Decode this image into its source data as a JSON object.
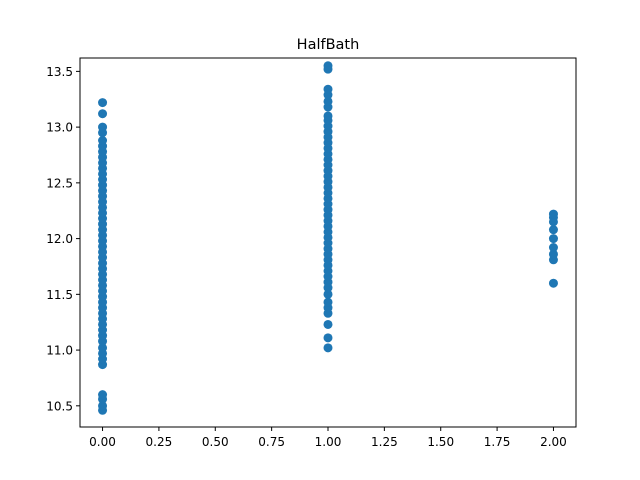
{
  "chart_data": {
    "type": "scatter",
    "title": "HalfBath",
    "xlabel": "",
    "ylabel": "",
    "xlim": [
      -0.1,
      2.1
    ],
    "ylim": [
      10.31,
      13.62
    ],
    "x_ticks": [
      0.0,
      0.25,
      0.5,
      0.75,
      1.0,
      1.25,
      1.5,
      1.75,
      2.0
    ],
    "x_tick_labels": [
      "0.00",
      "0.25",
      "0.50",
      "0.75",
      "1.00",
      "1.25",
      "1.50",
      "1.75",
      "2.00"
    ],
    "y_ticks": [
      10.5,
      11.0,
      11.5,
      12.0,
      12.5,
      13.0,
      13.5
    ],
    "y_tick_labels": [
      "10.5",
      "11.0",
      "11.5",
      "12.0",
      "12.5",
      "13.0",
      "13.5"
    ],
    "grid": false,
    "marker_color": "#1f77b4",
    "points": [
      {
        "x": 0,
        "y": 10.46
      },
      {
        "x": 0,
        "y": 10.5
      },
      {
        "x": 0,
        "y": 10.56
      },
      {
        "x": 0,
        "y": 10.6
      },
      {
        "x": 0,
        "y": 10.87
      },
      {
        "x": 0,
        "y": 10.92
      },
      {
        "x": 0,
        "y": 10.97
      },
      {
        "x": 0,
        "y": 11.02
      },
      {
        "x": 0,
        "y": 11.08
      },
      {
        "x": 0,
        "y": 11.13
      },
      {
        "x": 0,
        "y": 11.18
      },
      {
        "x": 0,
        "y": 11.23
      },
      {
        "x": 0,
        "y": 11.28
      },
      {
        "x": 0,
        "y": 11.33
      },
      {
        "x": 0,
        "y": 11.38
      },
      {
        "x": 0,
        "y": 11.43
      },
      {
        "x": 0,
        "y": 11.48
      },
      {
        "x": 0,
        "y": 11.53
      },
      {
        "x": 0,
        "y": 11.58
      },
      {
        "x": 0,
        "y": 11.63
      },
      {
        "x": 0,
        "y": 11.68
      },
      {
        "x": 0,
        "y": 11.73
      },
      {
        "x": 0,
        "y": 11.78
      },
      {
        "x": 0,
        "y": 11.83
      },
      {
        "x": 0,
        "y": 11.88
      },
      {
        "x": 0,
        "y": 11.93
      },
      {
        "x": 0,
        "y": 11.98
      },
      {
        "x": 0,
        "y": 12.03
      },
      {
        "x": 0,
        "y": 12.08
      },
      {
        "x": 0,
        "y": 12.13
      },
      {
        "x": 0,
        "y": 12.18
      },
      {
        "x": 0,
        "y": 12.23
      },
      {
        "x": 0,
        "y": 12.28
      },
      {
        "x": 0,
        "y": 12.33
      },
      {
        "x": 0,
        "y": 12.38
      },
      {
        "x": 0,
        "y": 12.43
      },
      {
        "x": 0,
        "y": 12.48
      },
      {
        "x": 0,
        "y": 12.53
      },
      {
        "x": 0,
        "y": 12.58
      },
      {
        "x": 0,
        "y": 12.63
      },
      {
        "x": 0,
        "y": 12.68
      },
      {
        "x": 0,
        "y": 12.73
      },
      {
        "x": 0,
        "y": 12.78
      },
      {
        "x": 0,
        "y": 12.83
      },
      {
        "x": 0,
        "y": 12.88
      },
      {
        "x": 0,
        "y": 12.95
      },
      {
        "x": 0,
        "y": 13.0
      },
      {
        "x": 0,
        "y": 13.12
      },
      {
        "x": 0,
        "y": 13.22
      },
      {
        "x": 1,
        "y": 11.02
      },
      {
        "x": 1,
        "y": 11.11
      },
      {
        "x": 1,
        "y": 11.23
      },
      {
        "x": 1,
        "y": 11.33
      },
      {
        "x": 1,
        "y": 11.38
      },
      {
        "x": 1,
        "y": 11.43
      },
      {
        "x": 1,
        "y": 11.5
      },
      {
        "x": 1,
        "y": 11.56
      },
      {
        "x": 1,
        "y": 11.61
      },
      {
        "x": 1,
        "y": 11.66
      },
      {
        "x": 1,
        "y": 11.71
      },
      {
        "x": 1,
        "y": 11.76
      },
      {
        "x": 1,
        "y": 11.81
      },
      {
        "x": 1,
        "y": 11.86
      },
      {
        "x": 1,
        "y": 11.91
      },
      {
        "x": 1,
        "y": 11.96
      },
      {
        "x": 1,
        "y": 12.01
      },
      {
        "x": 1,
        "y": 12.06
      },
      {
        "x": 1,
        "y": 12.11
      },
      {
        "x": 1,
        "y": 12.16
      },
      {
        "x": 1,
        "y": 12.21
      },
      {
        "x": 1,
        "y": 12.26
      },
      {
        "x": 1,
        "y": 12.31
      },
      {
        "x": 1,
        "y": 12.36
      },
      {
        "x": 1,
        "y": 12.41
      },
      {
        "x": 1,
        "y": 12.46
      },
      {
        "x": 1,
        "y": 12.51
      },
      {
        "x": 1,
        "y": 12.56
      },
      {
        "x": 1,
        "y": 12.61
      },
      {
        "x": 1,
        "y": 12.66
      },
      {
        "x": 1,
        "y": 12.71
      },
      {
        "x": 1,
        "y": 12.76
      },
      {
        "x": 1,
        "y": 12.81
      },
      {
        "x": 1,
        "y": 12.86
      },
      {
        "x": 1,
        "y": 12.91
      },
      {
        "x": 1,
        "y": 12.96
      },
      {
        "x": 1,
        "y": 13.01
      },
      {
        "x": 1,
        "y": 13.06
      },
      {
        "x": 1,
        "y": 13.1
      },
      {
        "x": 1,
        "y": 13.18
      },
      {
        "x": 1,
        "y": 13.23
      },
      {
        "x": 1,
        "y": 13.29
      },
      {
        "x": 1,
        "y": 13.34
      },
      {
        "x": 1,
        "y": 13.52
      },
      {
        "x": 1,
        "y": 13.55
      },
      {
        "x": 2,
        "y": 11.6
      },
      {
        "x": 2,
        "y": 11.81
      },
      {
        "x": 2,
        "y": 11.86
      },
      {
        "x": 2,
        "y": 11.92
      },
      {
        "x": 2,
        "y": 12.0
      },
      {
        "x": 2,
        "y": 12.08
      },
      {
        "x": 2,
        "y": 12.15
      },
      {
        "x": 2,
        "y": 12.19
      },
      {
        "x": 2,
        "y": 12.22
      }
    ]
  }
}
